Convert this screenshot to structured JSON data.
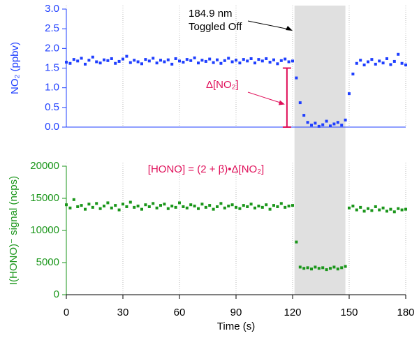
{
  "chart_data": [
    {
      "type": "scatter",
      "ylabel": "NO₂ (ppbv)",
      "color": "#1f3fff",
      "xlim": [
        0,
        180
      ],
      "xticks": [
        0,
        30,
        60,
        90,
        120,
        150,
        180
      ],
      "ylim": [
        0,
        3
      ],
      "yticks": [
        {
          "value": 0,
          "label": "0.0"
        },
        0.5,
        {
          "value": 1,
          "label": "1.0"
        },
        1.5,
        {
          "value": 2,
          "label": "2.0"
        },
        2.5,
        {
          "value": 3,
          "label": "3.0"
        }
      ],
      "shade": [
        121,
        148
      ],
      "annotation": [
        "184.9 nm",
        "Toggled Off"
      ],
      "bracket": {
        "label": "Δ[NO₂]",
        "x": 117,
        "y": [
          0,
          1.5
        ]
      },
      "x": [
        0,
        2,
        4,
        6,
        8,
        10,
        12,
        14,
        16,
        18,
        20,
        22,
        24,
        26,
        28,
        30,
        32,
        34,
        36,
        38,
        40,
        42,
        44,
        46,
        48,
        50,
        52,
        54,
        56,
        58,
        60,
        62,
        64,
        66,
        68,
        70,
        72,
        74,
        76,
        78,
        80,
        82,
        84,
        86,
        88,
        90,
        92,
        94,
        96,
        98,
        100,
        102,
        104,
        106,
        108,
        110,
        112,
        114,
        116,
        118,
        120,
        122,
        124,
        126,
        128,
        130,
        132,
        134,
        136,
        138,
        140,
        142,
        144,
        146,
        148,
        150,
        152,
        154,
        156,
        158,
        160,
        162,
        164,
        166,
        168,
        170,
        172,
        174,
        176,
        178,
        180
      ],
      "values": [
        1.65,
        1.62,
        1.72,
        1.68,
        1.75,
        1.6,
        1.7,
        1.78,
        1.66,
        1.63,
        1.71,
        1.69,
        1.74,
        1.62,
        1.67,
        1.73,
        1.8,
        1.64,
        1.7,
        1.66,
        1.61,
        1.72,
        1.68,
        1.75,
        1.63,
        1.7,
        1.66,
        1.71,
        1.6,
        1.74,
        1.68,
        1.65,
        1.72,
        1.69,
        1.76,
        1.63,
        1.7,
        1.67,
        1.73,
        1.64,
        1.71,
        1.62,
        1.69,
        1.75,
        1.66,
        1.7,
        1.63,
        1.72,
        1.68,
        1.74,
        1.63,
        1.72,
        1.68,
        1.74,
        1.65,
        1.71,
        1.61,
        1.69,
        1.73,
        1.66,
        1.68,
        1.25,
        0.62,
        0.3,
        0.12,
        0.05,
        0.1,
        0.02,
        0.06,
        0.15,
        0.03,
        0.08,
        0.12,
        0.05,
        0.18,
        0.85,
        1.35,
        1.62,
        1.7,
        1.58,
        1.66,
        1.72,
        1.6,
        1.68,
        1.63,
        1.74,
        1.59,
        1.67,
        1.85,
        1.62,
        1.58
      ]
    },
    {
      "type": "scatter",
      "ylabel": "I(HONO)⁻ signal (ncps)",
      "xlabel": "Time (s)",
      "color": "#1a961a",
      "xlim": [
        0,
        180
      ],
      "xticks": [
        0,
        30,
        60,
        90,
        120,
        150,
        180
      ],
      "ylim": [
        0,
        20000
      ],
      "yticks": [
        0,
        5000,
        10000,
        15000,
        20000
      ],
      "annotation": "[HONO] = (2 + β)•Δ[NO₂]",
      "x": [
        0,
        2,
        4,
        6,
        8,
        10,
        12,
        14,
        16,
        18,
        20,
        22,
        24,
        26,
        28,
        30,
        32,
        34,
        36,
        38,
        40,
        42,
        44,
        46,
        48,
        50,
        52,
        54,
        56,
        58,
        60,
        62,
        64,
        66,
        68,
        70,
        72,
        74,
        76,
        78,
        80,
        82,
        84,
        86,
        88,
        90,
        92,
        94,
        96,
        98,
        100,
        102,
        104,
        106,
        108,
        110,
        112,
        114,
        116,
        118,
        120,
        122,
        124,
        126,
        128,
        130,
        132,
        134,
        136,
        138,
        140,
        142,
        144,
        146,
        148,
        150,
        152,
        154,
        156,
        158,
        160,
        162,
        164,
        166,
        168,
        170,
        172,
        174,
        176,
        178,
        180
      ],
      "values": [
        14000,
        13500,
        14800,
        13700,
        13900,
        13300,
        14100,
        13600,
        14200,
        13400,
        13800,
        14300,
        13500,
        13900,
        13200,
        14100,
        13700,
        14400,
        13600,
        13800,
        13300,
        14000,
        13700,
        14200,
        13500,
        13900,
        14100,
        13400,
        13800,
        13600,
        14300,
        13700,
        13500,
        14000,
        13800,
        13400,
        14100,
        13600,
        13900,
        13300,
        13700,
        14200,
        13500,
        13800,
        14000,
        13600,
        13400,
        13900,
        13700,
        14100,
        13500,
        13800,
        13600,
        14000,
        13300,
        13900,
        13700,
        14200,
        13600,
        13800,
        13900,
        8200,
        4300,
        4100,
        4200,
        4000,
        4300,
        4100,
        4200,
        3900,
        4100,
        4300,
        4000,
        4200,
        4400,
        13500,
        13800,
        13200,
        13600,
        13000,
        13400,
        13100,
        13700,
        13200,
        13500,
        13000,
        13300,
        12900,
        13400,
        13200,
        13300
      ]
    }
  ]
}
